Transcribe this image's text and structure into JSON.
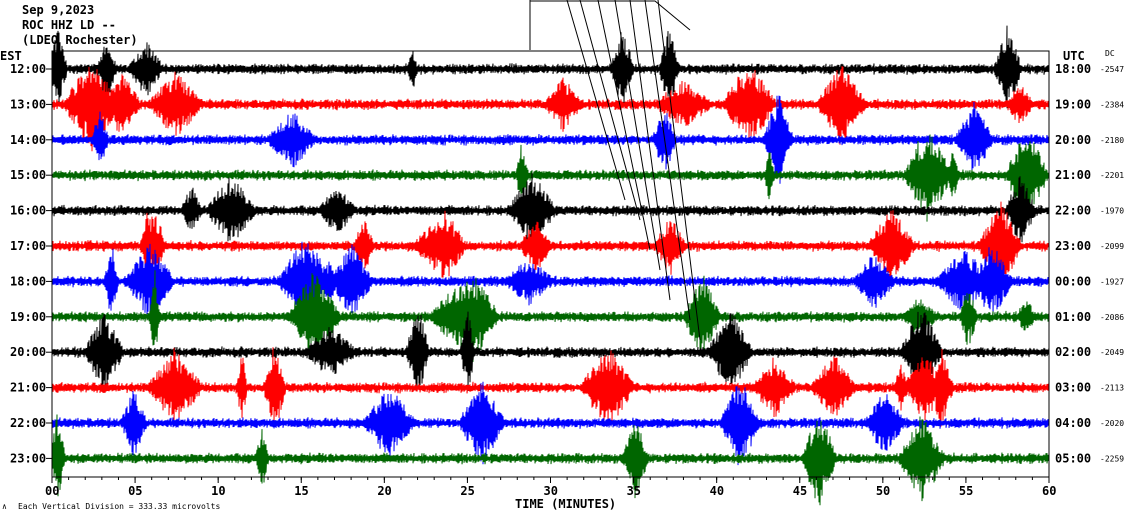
{
  "header": {
    "date": "Sep 9,2023",
    "station": "ROC HHZ LD --",
    "location": "(LDEO Rochester)"
  },
  "left_axis_label": "EST",
  "right_axis_label": "UTC",
  "dc_label": "DC",
  "x_axis_title": "TIME (MINUTES)",
  "scale_note": "Each Vertical Division = 333.33 microvolts",
  "chart_data": {
    "type": "line",
    "title": "Sep 9,2023 ROC HHZ LD -- (LDEO Rochester)",
    "xlabel": "TIME (MINUTES)",
    "ylabel": "EST",
    "xlim": [
      0,
      60
    ],
    "x_ticks": [
      "00",
      "05",
      "10",
      "15",
      "20",
      "25",
      "30",
      "35",
      "40",
      "45",
      "50",
      "55",
      "60"
    ],
    "trace_colors": [
      "#000000",
      "#ff0000",
      "#0000ff",
      "#006600"
    ],
    "rows": [
      {
        "est": "12:00",
        "utc": "18:00",
        "dc": "-2547",
        "color": "#000000"
      },
      {
        "est": "13:00",
        "utc": "19:00",
        "dc": "-2384",
        "color": "#ff0000"
      },
      {
        "est": "14:00",
        "utc": "20:00",
        "dc": "-2180",
        "color": "#0000ff"
      },
      {
        "est": "15:00",
        "utc": "21:00",
        "dc": "-2201",
        "color": "#006600"
      },
      {
        "est": "16:00",
        "utc": "22:00",
        "dc": "-1970",
        "color": "#000000"
      },
      {
        "est": "17:00",
        "utc": "23:00",
        "dc": "-2099",
        "color": "#ff0000"
      },
      {
        "est": "18:00",
        "utc": "00:00",
        "dc": "-1927",
        "color": "#0000ff"
      },
      {
        "est": "19:00",
        "utc": "01:00",
        "dc": "-2086",
        "color": "#006600"
      },
      {
        "est": "20:00",
        "utc": "02:00",
        "dc": "-2049",
        "color": "#000000"
      },
      {
        "est": "21:00",
        "utc": "03:00",
        "dc": "-2113",
        "color": "#ff0000"
      },
      {
        "est": "22:00",
        "utc": "04:00",
        "dc": "-2020",
        "color": "#0000ff"
      },
      {
        "est": "23:00",
        "utc": "05:00",
        "dc": "-2259",
        "color": "#006600"
      }
    ]
  }
}
